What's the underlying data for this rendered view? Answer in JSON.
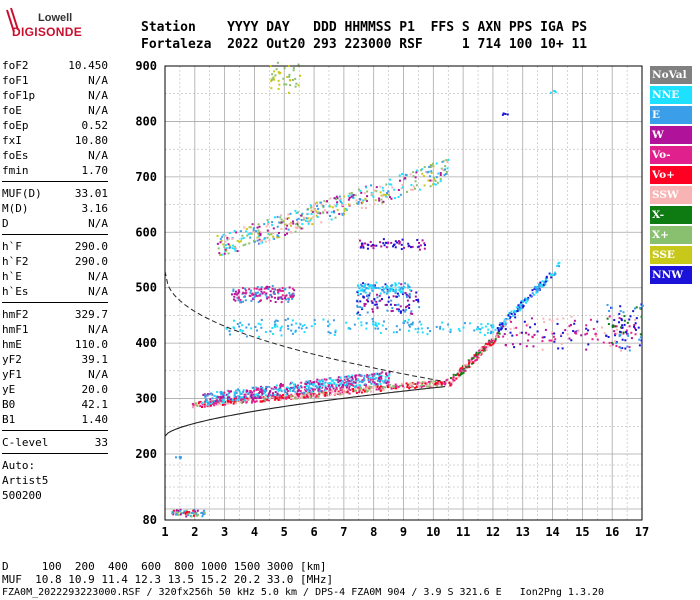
{
  "logo": {
    "line1": "Lowell",
    "line2": "DIGISONDE"
  },
  "header": {
    "row1": "Station    YYYY DAY   DDD HHMMSS P1  FFS S AXN PPS IGA PS",
    "row2": "Fortaleza  2022 Out20 293 223000 RSF     1 714 100 10+ 11"
  },
  "params": {
    "group1": [
      {
        "k": "foF2",
        "v": "10.450"
      },
      {
        "k": "foF1",
        "v": "N/A"
      },
      {
        "k": "foF1p",
        "v": "N/A"
      },
      {
        "k": "foE",
        "v": "N/A"
      },
      {
        "k": "foEp",
        "v": "0.52"
      },
      {
        "k": "fxI",
        "v": "10.80"
      },
      {
        "k": "foEs",
        "v": "N/A"
      },
      {
        "k": "fmin",
        "v": "1.70"
      }
    ],
    "group2": [
      {
        "k": "MUF(D)",
        "v": "33.01"
      },
      {
        "k": "M(D)",
        "v": "3.16"
      },
      {
        "k": "D",
        "v": "N/A"
      }
    ],
    "group3": [
      {
        "k": "h`F",
        "v": "290.0"
      },
      {
        "k": "h`F2",
        "v": "290.0"
      },
      {
        "k": "h`E",
        "v": "N/A"
      },
      {
        "k": "h`Es",
        "v": "N/A"
      }
    ],
    "group4": [
      {
        "k": "hmF2",
        "v": "329.7"
      },
      {
        "k": "hmF1",
        "v": "N/A"
      },
      {
        "k": "hmE",
        "v": "110.0"
      },
      {
        "k": "yF2",
        "v": "39.1"
      },
      {
        "k": "yF1",
        "v": "N/A"
      },
      {
        "k": "yE",
        "v": "20.0"
      },
      {
        "k": "B0",
        "v": "42.1"
      },
      {
        "k": "B1",
        "v": "1.40"
      }
    ],
    "group5": [
      {
        "k": "C-level",
        "v": "33"
      }
    ],
    "auto": [
      "Auto:",
      "Artist5",
      "500200"
    ]
  },
  "legend": [
    {
      "label": "NoVal",
      "color": "#808080"
    },
    {
      "label": "NNE",
      "color": "#1ee0ff"
    },
    {
      "label": "E",
      "color": "#3a9ee8"
    },
    {
      "label": "W",
      "color": "#b0129a"
    },
    {
      "label": "Vo-",
      "color": "#e0208c"
    },
    {
      "label": "Vo+",
      "color": "#ff0022"
    },
    {
      "label": "SSW",
      "color": "#f8b4b4"
    },
    {
      "label": "X-",
      "color": "#0e7a12"
    },
    {
      "label": "X+",
      "color": "#88c070"
    },
    {
      "label": "SSE",
      "color": "#c8c81a"
    },
    {
      "label": "NNW",
      "color": "#1a12d8"
    }
  ],
  "axes": {
    "x_ticks": [
      "1",
      "2",
      "3",
      "4",
      "5",
      "6",
      "7",
      "8",
      "9",
      "10",
      "11",
      "12",
      "13",
      "14",
      "15",
      "16",
      "17"
    ],
    "y_ticks": [
      "80",
      "200",
      "300",
      "400",
      "500",
      "600",
      "700",
      "800",
      "900"
    ]
  },
  "footer": {
    "line1": "D     100  200  400  600  800 1000 1500 3000 [km]",
    "line2": "MUF  10.8 10.9 11.4 12.3 13.5 15.2 20.2 33.0 [MHz]",
    "line3": "FZA0M_2022293223000.RSF / 320fx256h 50 kHz 5.0 km / DPS-4 FZA0M 904 / 3.9 S 321.6 E   Ion2Png 1.3.20"
  }
}
